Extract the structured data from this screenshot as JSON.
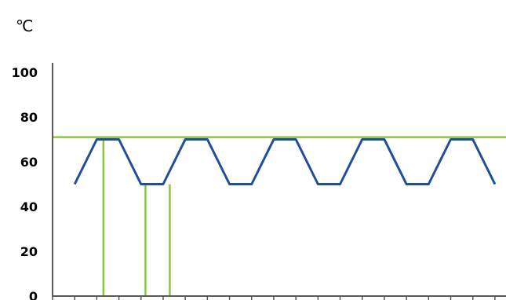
{
  "chart_data": {
    "type": "line",
    "ylabel": "℃",
    "ylim": [
      0,
      100
    ],
    "yticks": [
      0,
      20,
      40,
      60,
      80,
      100
    ],
    "xlim": [
      0,
      20.5
    ],
    "x_tick_count": 21,
    "grid": false,
    "series": [
      {
        "color": "#1f4e9c",
        "x": [
          1,
          2,
          3,
          4,
          5,
          6,
          7,
          8,
          9,
          10,
          11,
          12,
          13,
          14,
          15,
          16,
          17,
          18,
          19,
          20
        ],
        "values": [
          50,
          70,
          70,
          50,
          50,
          70,
          70,
          50,
          50,
          70,
          70,
          50,
          50,
          70,
          70,
          50,
          50,
          70,
          70,
          50
        ],
        "note": "x positions per tick interval, y in degrees"
      }
    ],
    "reference_lines": {
      "color": "#8cc63f",
      "horizontal": [
        {
          "y": 71
        }
      ],
      "vertical": [
        {
          "x": 2.3,
          "y_to": 70
        },
        {
          "x": 4.2,
          "y_to": 50
        },
        {
          "x": 5.3,
          "y_to": 50
        }
      ]
    }
  }
}
